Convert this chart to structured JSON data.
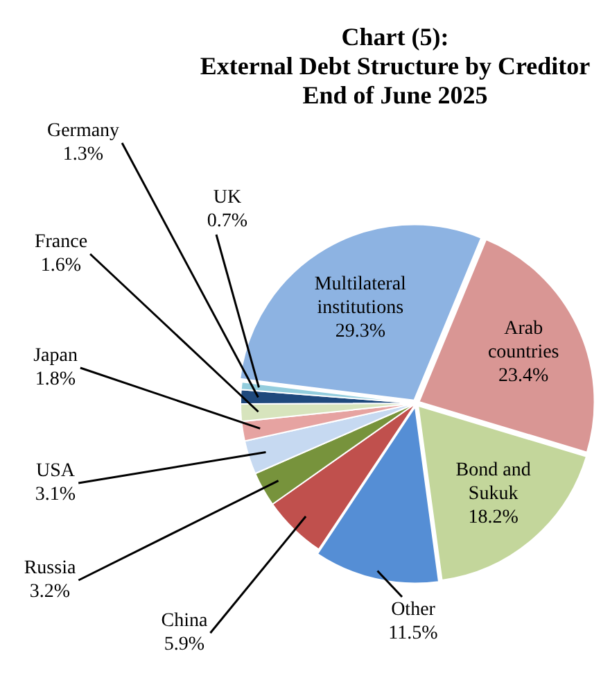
{
  "chart_data": {
    "type": "pie",
    "title": "Chart (5):\nExternal Debt Structure by Creditor\nEnd of June 2025",
    "categories": [
      "Multilateral institutions",
      "Arab countries",
      "Bond and Sukuk",
      "Other",
      "China",
      "Russia",
      "USA",
      "Japan",
      "France",
      "Germany",
      "UK"
    ],
    "values": [
      29.3,
      23.4,
      18.2,
      11.5,
      5.9,
      3.2,
      3.1,
      1.8,
      1.6,
      1.3,
      0.7
    ],
    "value_labels": [
      "29.3%",
      "23.4%",
      "18.2%",
      "11.5%",
      "5.9%",
      "3.2%",
      "3.1%",
      "1.8%",
      "1.6%",
      "1.3%",
      "0.7%"
    ],
    "colors": [
      "#8db3e2",
      "#d99694",
      "#c3d69b",
      "#558ed5",
      "#c0504d",
      "#77933c",
      "#c6d9f1",
      "#e6a3a1",
      "#d7e4bd",
      "#1f497d",
      "#93cddd"
    ],
    "legend": false
  }
}
